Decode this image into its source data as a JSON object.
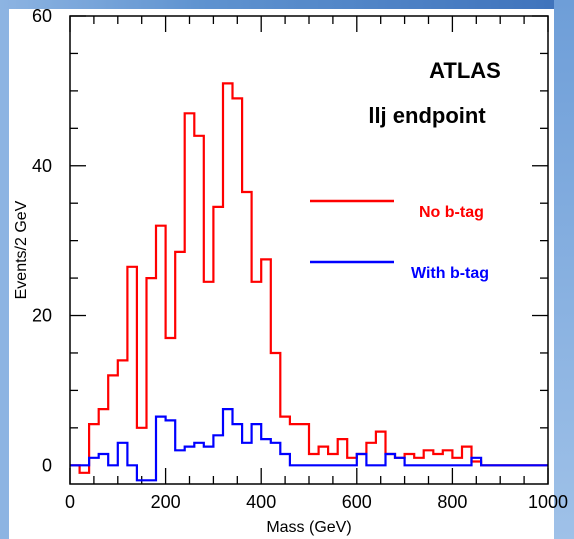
{
  "chart_data": {
    "type": "line",
    "step": true,
    "xlabel": "Mass (GeV)",
    "ylabel": "Events/2 GeV",
    "xlim": [
      0,
      1000
    ],
    "ylim": [
      -2.5,
      60
    ],
    "x_ticks": [
      0,
      200,
      400,
      600,
      800,
      1000
    ],
    "y_ticks": [
      0,
      20,
      40,
      60
    ],
    "grid": false,
    "legend_position": "right",
    "annotations": [
      "ATLAS",
      "llj endpoint"
    ],
    "bin_edges": [
      0,
      20,
      40,
      60,
      80,
      100,
      120,
      140,
      160,
      180,
      200,
      220,
      240,
      260,
      280,
      300,
      320,
      340,
      360,
      380,
      400,
      420,
      440,
      460,
      480,
      500,
      520,
      540,
      560,
      580,
      600,
      620,
      640,
      660,
      680,
      700,
      720,
      740,
      760,
      780,
      800,
      820,
      840,
      860,
      880,
      900,
      920,
      940,
      960,
      980,
      1000
    ],
    "series": [
      {
        "name": "No b-tag",
        "color": "#ff0000",
        "values": [
          0,
          -1,
          5.5,
          7.5,
          12,
          14,
          26.5,
          5,
          25,
          32,
          17,
          28.5,
          47,
          44,
          24.5,
          34.5,
          51,
          49,
          36.5,
          24.5,
          27.5,
          15,
          6.5,
          5.5,
          5.5,
          1.5,
          2.5,
          1.5,
          3.5,
          1,
          1.5,
          3,
          4.5,
          1.5,
          1,
          1.5,
          1,
          2,
          1.5,
          2,
          1,
          2.5,
          0.5,
          0,
          0,
          0,
          0,
          0,
          0,
          0
        ]
      },
      {
        "name": "With b-tag",
        "color": "#0000ff",
        "values": [
          0,
          0,
          1,
          1.5,
          0,
          3,
          0,
          -2,
          -2,
          6.5,
          6,
          2,
          2.5,
          3,
          2.5,
          4,
          7.5,
          5.5,
          3,
          5.5,
          3.5,
          3,
          1.5,
          0,
          0,
          0,
          0,
          0,
          0,
          0,
          1.5,
          0,
          0,
          1.5,
          1,
          0,
          0,
          0,
          0,
          0,
          0,
          0,
          1,
          0,
          0,
          0,
          0,
          0,
          0,
          0
        ]
      }
    ]
  },
  "frame_colors": {
    "left": "#8db4e2",
    "top_start": "#8db4e2",
    "top_end": "#3e72bb",
    "right": "#6e9ed8"
  }
}
